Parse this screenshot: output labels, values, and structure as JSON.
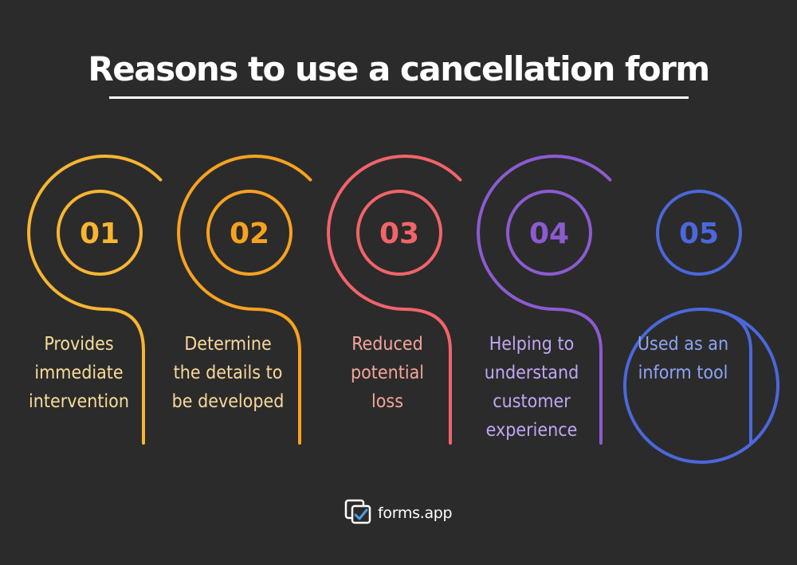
{
  "title": "Reasons to use a cancellation form",
  "steps": [
    {
      "number": "01",
      "lines": [
        "Provides",
        "immediate",
        "intervention"
      ],
      "color": "#f7b532",
      "text_color": "#f8dd9a"
    },
    {
      "number": "02",
      "lines": [
        "Determine",
        "the details to",
        "be developed"
      ],
      "color": "#f7a21f",
      "text_color": "#f8d89c"
    },
    {
      "number": "03",
      "lines": [
        "Reduced",
        "potential",
        "loss"
      ],
      "color": "#f2646a",
      "text_color": "#f4a59b"
    },
    {
      "number": "04",
      "lines": [
        "Helping to",
        "understand",
        "customer",
        "experience"
      ],
      "color": "#8c5bd0",
      "text_color": "#c1a6f4"
    },
    {
      "number": "05",
      "lines": [
        "Used as an",
        "inform tool"
      ],
      "color": "#4b68db",
      "text_color": "#8ea4f4"
    }
  ],
  "brand": {
    "name": "forms.app",
    "icon": "forms-app-logo-icon"
  }
}
